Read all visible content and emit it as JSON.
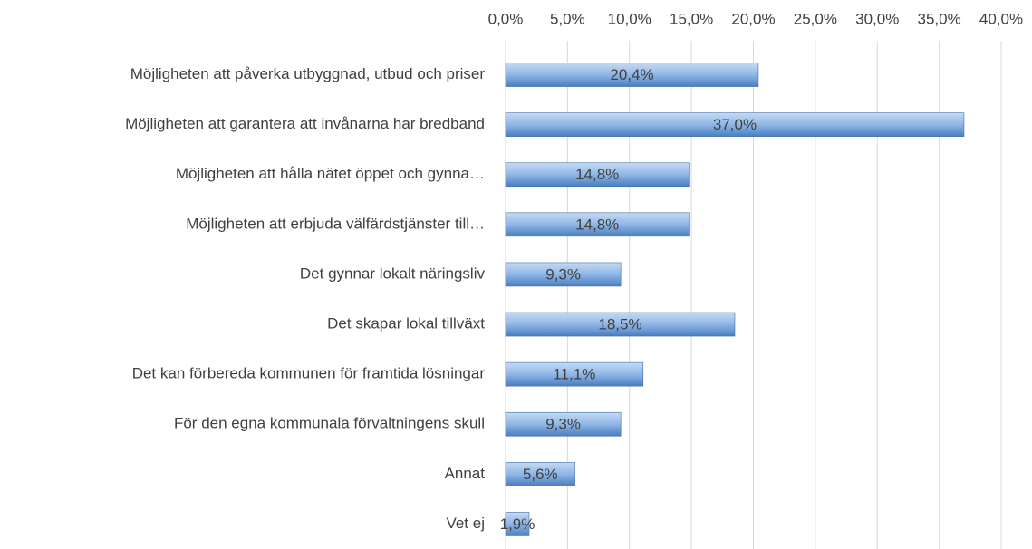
{
  "chart_data": {
    "type": "bar",
    "orientation": "horizontal",
    "categories": [
      "Möjligheten att påverka utbyggnad, utbud och priser",
      "Möjligheten att garantera att invånarna har bredband",
      "Möjligheten att hålla nätet öppet och gynna…",
      "Möjligheten att erbjuda välfärdstjänster till…",
      "Det gynnar lokalt näringsliv",
      "Det skapar lokal tillväxt",
      "Det kan förbereda kommunen för framtida lösningar",
      "För den egna kommunala förvaltningens skull",
      "Annat",
      "Vet ej"
    ],
    "values": [
      20.4,
      37.0,
      14.8,
      14.8,
      9.3,
      18.5,
      11.1,
      9.3,
      5.6,
      1.9
    ],
    "value_labels": [
      "20,4%",
      "37,0%",
      "14,8%",
      "14,8%",
      "9,3%",
      "18,5%",
      "11,1%",
      "9,3%",
      "5,6%",
      "1,9%"
    ],
    "color": "#6f9fd8",
    "xlim": [
      0,
      40
    ],
    "xticks": [
      {
        "value": 0,
        "label": "0,0%"
      },
      {
        "value": 5,
        "label": "5,0%"
      },
      {
        "value": 10,
        "label": "10,0%"
      },
      {
        "value": 15,
        "label": "15,0%"
      },
      {
        "value": 20,
        "label": "20,0%"
      },
      {
        "value": 25,
        "label": "25,0%"
      },
      {
        "value": 30,
        "label": "30,0%"
      },
      {
        "value": 35,
        "label": "35,0%"
      },
      {
        "value": 40,
        "label": "40,0%"
      }
    ],
    "grid": true
  }
}
